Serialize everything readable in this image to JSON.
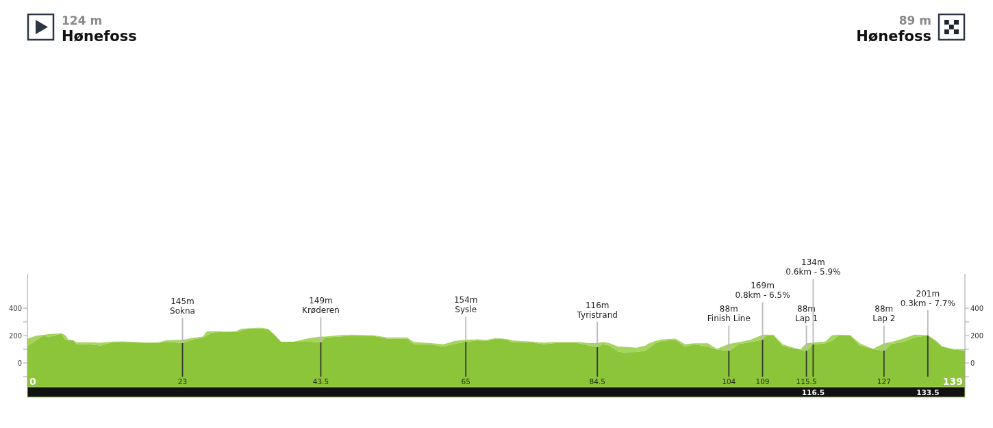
{
  "chart_data": {
    "type": "area",
    "stacked": true,
    "annotations": [
      "124 m\nHønefoss",
      "89 m\nHønefoss",
      "0",
      "139"
    ],
    "xlim": [
      0,
      139
    ],
    "xticks": [
      23,
      43.5,
      65,
      84.5,
      104,
      109,
      115.5,
      127
    ],
    "x2lim": [
      0,
      139
    ],
    "x2ticks": [
      116.5,
      133.5
    ],
    "ylim": [
      -175,
      650
    ],
    "yticks": [
      {
        "value": -100,
        "label": null
      },
      0,
      {
        "value": 100,
        "label": null
      },
      200,
      {
        "value": 300,
        "label": null
      },
      400
    ],
    "y2lim": [
      -175,
      650
    ],
    "y2ticks": [
      {
        "value": -100,
        "label": null
      },
      0,
      {
        "value": 100,
        "label": null
      },
      200,
      {
        "value": 300,
        "label": null
      },
      400
    ],
    "bands": [
      {
        "axis": "y",
        "from": -175,
        "to": 0,
        "color": "#8cc43a"
      }
    ],
    "x": [
      0,
      1.4,
      2.4,
      3.1,
      4.1,
      5.1,
      5.6,
      6.1,
      6.8,
      7.3,
      9.1,
      10.8,
      12.5,
      14.2,
      15.9,
      17.6,
      19.3,
      20.6,
      23,
      24.6,
      26,
      26.6,
      27.6,
      29.3,
      31,
      31.7,
      32.7,
      34.4,
      35.7,
      36.7,
      37.6,
      39.4,
      42.1,
      43.5,
      44.1,
      46.2,
      48,
      51.3,
      53.3,
      56.3,
      57.3,
      59.7,
      61.7,
      63.4,
      65,
      66.7,
      68.1,
      69.4,
      71.1,
      71.8,
      74.8,
      76.5,
      78.2,
      81.6,
      83.3,
      84.5,
      85.3,
      86.3,
      87.6,
      88.3,
      90.3,
      91.7,
      92,
      92.7,
      93.1,
      94.1,
      96.1,
      97.5,
      98.8,
      100.9,
      102.2,
      104,
      105.6,
      107.2,
      109,
      109.6,
      110.6,
      112,
      113.6,
      114.6,
      115.5,
      116.5,
      118.3,
      119.3,
      120.3,
      122,
      123.4,
      125.4,
      127,
      128.1,
      129.8,
      131.5,
      133.5,
      134.6,
      135.6,
      137.2,
      139
    ],
    "series": [
      {
        "color": "#8cc43a",
        "values": [
          124,
          169,
          202,
          187,
          202,
          212,
          169,
          169,
          165,
          136,
          136,
          128,
          150,
          153,
          150,
          148,
          145,
          155,
          145,
          172,
          184,
          202,
          224,
          226,
          226,
          236,
          250,
          253,
          245,
          202,
          155,
          155,
          155,
          149,
          185,
          193,
          199,
          197,
          178,
          178,
          136,
          136,
          119,
          141,
          154,
          165,
          160,
          178,
          172,
          153,
          153,
          136,
          145,
          145,
          128,
          116,
          136,
          128,
          82,
          77,
          80,
          90,
          102,
          128,
          144,
          161,
          169,
          119,
          136,
          119,
          99,
          88,
          139,
          152,
          169,
          202,
          202,
          122,
          106,
          99,
          88,
          134,
          144,
          161,
          202,
          202,
          127,
          102,
          88,
          139,
          152,
          186,
          201,
          161,
          119,
          99,
          89
        ]
      },
      {
        "color": "#a6d55e",
        "values": [
          53,
          31,
          3,
          23,
          12,
          5,
          33,
          0,
          0,
          14,
          14,
          20,
          5,
          4,
          3,
          2,
          5,
          10,
          24,
          12,
          9,
          28,
          8,
          3,
          6,
          14,
          3,
          4,
          5,
          0,
          0,
          0,
          29,
          44,
          8,
          9,
          7,
          5,
          8,
          8,
          17,
          9,
          17,
          20,
          15,
          7,
          9,
          3,
          3,
          12,
          2,
          12,
          8,
          8,
          17,
          29,
          17,
          17,
          37,
          42,
          31,
          38,
          38,
          25,
          17,
          11,
          8,
          17,
          8,
          25,
          3,
          51,
          13,
          17,
          37,
          4,
          4,
          14,
          5,
          0,
          56,
          15,
          12,
          41,
          4,
          0,
          17,
          0,
          56,
          13,
          25,
          20,
          1,
          8,
          3,
          3,
          10
        ]
      }
    ],
    "ref_lines": [
      {
        "axis": "x",
        "value": 23,
        "label": "145m\nSokna"
      },
      {
        "axis": "x",
        "value": 43.5,
        "label": "149m\nKrøderen"
      },
      {
        "axis": "x",
        "value": 65,
        "label": "154m\nSysle"
      },
      {
        "axis": "x",
        "value": 84.5,
        "label": "116m\nTyristrand"
      },
      {
        "axis": "x",
        "value": 104,
        "label": "88m\nFinish Line"
      },
      {
        "axis": "x",
        "value": 109,
        "label": "169m\n0.8km - 6.5%"
      },
      {
        "axis": "x",
        "value": 115.5,
        "label": "88m\nLap 1"
      },
      {
        "axis": "x",
        "value": 116.5,
        "label": "134m\n0.6km - 5.9%"
      },
      {
        "axis": "x",
        "value": 127,
        "label": "88m\nLap 2"
      },
      {
        "axis": "x",
        "value": 133.5,
        "label": "201m\n0.3km - 7.7%"
      }
    ]
  }
}
